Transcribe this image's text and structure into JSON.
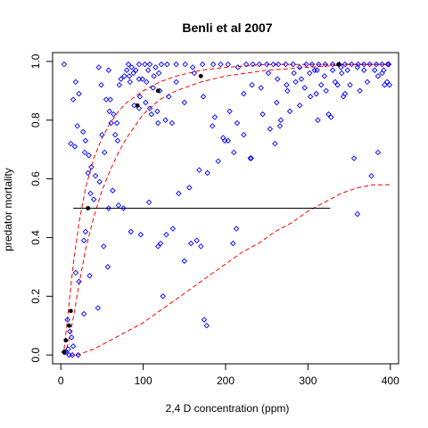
{
  "chart_data": {
    "type": "scatter",
    "title": "Benli et al 2007",
    "xlabel": "2,4 D concentration (ppm)",
    "ylabel": "predator mortality",
    "xlim": [
      -10,
      410
    ],
    "ylim": [
      -0.03,
      1.03
    ],
    "xticks": [
      0,
      100,
      200,
      300,
      400
    ],
    "yticks": [
      0.0,
      0.2,
      0.4,
      0.6,
      0.8,
      1.0
    ],
    "colors": {
      "points": "#0000ff",
      "means": "#000000",
      "curves": "#ff0000",
      "line": "#000000"
    },
    "series": [
      {
        "kind": "observations",
        "marker": "open-diamond",
        "points": [
          [
            4,
            0.99
          ],
          [
            18,
            0.93
          ],
          [
            22,
            0.89
          ],
          [
            15,
            0.87
          ],
          [
            27,
            0.76
          ],
          [
            30,
            0.73
          ],
          [
            20,
            0.78
          ],
          [
            12,
            0.72
          ],
          [
            17,
            0.71
          ],
          [
            29,
            0.69
          ],
          [
            34,
            0.68
          ],
          [
            36,
            0.55
          ],
          [
            40,
            0.53
          ],
          [
            46,
            0.98
          ],
          [
            58,
            0.97
          ],
          [
            49,
            0.92
          ],
          [
            60,
            0.87
          ],
          [
            64,
            0.82
          ],
          [
            68,
            0.79
          ],
          [
            50,
            0.75
          ],
          [
            53,
            0.69
          ],
          [
            37,
            0.64
          ],
          [
            33,
            0.62
          ],
          [
            42,
            0.61
          ],
          [
            47,
            0.59
          ],
          [
            30,
            0.42
          ],
          [
            28,
            0.39
          ],
          [
            18,
            0.28
          ],
          [
            22,
            0.25
          ],
          [
            8,
            0.12
          ],
          [
            11,
            0.08
          ],
          [
            13,
            0.06
          ],
          [
            15,
            0.03
          ],
          [
            4,
            0.01
          ],
          [
            6,
            0.01
          ],
          [
            9,
            0.02
          ],
          [
            10,
            0.0
          ],
          [
            14,
            0.0
          ],
          [
            21,
            0.0
          ],
          [
            28,
            0.14
          ],
          [
            35,
            0.27
          ],
          [
            45,
            0.16
          ],
          [
            52,
            0.37
          ],
          [
            57,
            0.3
          ],
          [
            58,
            0.5
          ],
          [
            63,
            0.56
          ],
          [
            70,
            0.51
          ],
          [
            76,
            0.5
          ],
          [
            86,
            0.98
          ],
          [
            95,
            0.99
          ],
          [
            102,
            0.99
          ],
          [
            108,
            0.99
          ],
          [
            115,
            0.98
          ],
          [
            122,
            0.99
          ],
          [
            129,
            0.99
          ],
          [
            140,
            0.99
          ],
          [
            151,
            0.99
          ],
          [
            160,
            0.98
          ],
          [
            172,
            0.99
          ],
          [
            185,
            0.99
          ],
          [
            194,
            0.99
          ],
          [
            203,
            0.99
          ],
          [
            215,
            0.98
          ],
          [
            225,
            0.99
          ],
          [
            233,
            0.99
          ],
          [
            241,
            0.99
          ],
          [
            250,
            0.99
          ],
          [
            258,
            0.99
          ],
          [
            264,
            0.99
          ],
          [
            273,
            0.99
          ],
          [
            282,
            0.99
          ],
          [
            290,
            0.98
          ],
          [
            298,
            0.99
          ],
          [
            305,
            0.99
          ],
          [
            313,
            0.99
          ],
          [
            321,
            0.99
          ],
          [
            330,
            0.99
          ],
          [
            338,
            0.99
          ],
          [
            345,
            0.99
          ],
          [
            353,
            0.99
          ],
          [
            361,
            0.99
          ],
          [
            368,
            0.99
          ],
          [
            375,
            0.99
          ],
          [
            383,
            0.99
          ],
          [
            390,
            0.99
          ],
          [
            397,
            0.99
          ],
          [
            88,
            0.96
          ],
          [
            95,
            0.94
          ],
          [
            104,
            0.93
          ],
          [
            112,
            0.91
          ],
          [
            120,
            0.9
          ],
          [
            131,
            0.88
          ],
          [
            140,
            0.93
          ],
          [
            150,
            0.86
          ],
          [
            162,
            0.96
          ],
          [
            173,
            0.88
          ],
          [
            184,
            0.78
          ],
          [
            197,
            0.74
          ],
          [
            205,
            0.83
          ],
          [
            214,
            0.79
          ],
          [
            222,
            0.89
          ],
          [
            232,
            0.92
          ],
          [
            243,
            0.91
          ],
          [
            252,
            0.96
          ],
          [
            263,
            0.94
          ],
          [
            274,
            0.92
          ],
          [
            283,
            0.96
          ],
          [
            292,
            0.94
          ],
          [
            302,
            0.96
          ],
          [
            311,
            0.97
          ],
          [
            320,
            0.95
          ],
          [
            330,
            0.97
          ],
          [
            340,
            0.98
          ],
          [
            348,
            0.97
          ],
          [
            360,
            0.98
          ],
          [
            368,
            0.97
          ],
          [
            381,
            0.97
          ],
          [
            390,
            0.96
          ],
          [
            398,
            0.99
          ],
          [
            96,
            0.88
          ],
          [
            108,
            0.84
          ],
          [
            117,
            0.83
          ],
          [
            127,
            0.8
          ],
          [
            135,
            0.79
          ],
          [
            143,
            0.55
          ],
          [
            156,
            0.57
          ],
          [
            168,
            0.63
          ],
          [
            178,
            0.62
          ],
          [
            191,
            0.66
          ],
          [
            203,
            0.73
          ],
          [
            210,
            0.69
          ],
          [
            230,
            0.67
          ],
          [
            245,
            0.82
          ],
          [
            262,
            0.86
          ],
          [
            267,
            0.8
          ],
          [
            285,
            0.93
          ],
          [
            296,
            0.91
          ],
          [
            308,
            0.97
          ],
          [
            316,
            0.92
          ],
          [
            322,
            0.9
          ],
          [
            333,
            0.93
          ],
          [
            345,
            0.89
          ],
          [
            351,
            0.92
          ],
          [
            363,
            0.9
          ],
          [
            372,
            0.93
          ],
          [
            385,
            0.95
          ],
          [
            393,
            0.92
          ],
          [
            85,
            0.42
          ],
          [
            97,
            0.41
          ],
          [
            107,
            0.52
          ],
          [
            121,
            0.38
          ],
          [
            128,
            0.41
          ],
          [
            136,
            0.43
          ],
          [
            150,
            0.32
          ],
          [
            158,
            0.38
          ],
          [
            165,
            0.39
          ],
          [
            170,
            0.37
          ],
          [
            174,
            0.12
          ],
          [
            177,
            0.1
          ],
          [
            187,
            0.81
          ],
          [
            199,
            0.73
          ],
          [
            213,
            0.43
          ],
          [
            231,
            0.67
          ],
          [
            260,
            0.72
          ],
          [
            266,
            0.78
          ],
          [
            278,
            0.83
          ],
          [
            290,
            0.85
          ],
          [
            303,
            0.88
          ],
          [
            325,
            0.82
          ],
          [
            328,
            0.81
          ],
          [
            336,
            0.92
          ],
          [
            343,
            0.88
          ],
          [
            356,
            0.67
          ],
          [
            360,
            0.48
          ],
          [
            377,
            0.61
          ],
          [
            385,
            0.69
          ],
          [
            392,
            0.97
          ],
          [
            396,
            0.93
          ],
          [
            399,
            0.92
          ],
          [
            209,
            0.38
          ],
          [
            222,
            0.75
          ],
          [
            254,
            0.77
          ],
          [
            275,
            0.9
          ],
          [
            312,
            0.8
          ],
          [
            341,
            0.96
          ],
          [
            310,
            0.89
          ],
          [
            110,
            0.82
          ],
          [
            118,
            0.79
          ],
          [
            124,
            0.2
          ],
          [
            118,
            0.37
          ],
          [
            95,
            0.84
          ],
          [
            103,
            0.86
          ],
          [
            71,
            0.92
          ],
          [
            77,
            0.95
          ],
          [
            83,
            0.95
          ],
          [
            89,
            0.85
          ],
          [
            55,
            0.87
          ],
          [
            59,
            0.83
          ],
          [
            61,
            0.79
          ],
          [
            66,
            0.75
          ],
          [
            69,
            0.73
          ],
          [
            73,
            0.94
          ],
          [
            80,
            0.97
          ],
          [
            82,
            0.99
          ],
          [
            84,
            0.93
          ],
          [
            91,
            0.97
          ],
          [
            99,
            0.94
          ],
          [
            106,
            0.97
          ],
          [
            113,
            0.95
          ],
          [
            119,
            0.96
          ]
        ]
      },
      {
        "kind": "group-means",
        "marker": "filled-circle",
        "points": [
          [
            4,
            0.01
          ],
          [
            6,
            0.05
          ],
          [
            10,
            0.1
          ],
          [
            12,
            0.15
          ],
          [
            33,
            0.5
          ],
          [
            93,
            0.85
          ],
          [
            118,
            0.9
          ],
          [
            170,
            0.95
          ],
          [
            337,
            0.99
          ]
        ]
      },
      {
        "kind": "fitted-curve",
        "style": "dashed",
        "points": [
          [
            4,
            0.02
          ],
          [
            8,
            0.12
          ],
          [
            12,
            0.23
          ],
          [
            16,
            0.33
          ],
          [
            22,
            0.45
          ],
          [
            30,
            0.57
          ],
          [
            40,
            0.67
          ],
          [
            50,
            0.74
          ],
          [
            60,
            0.79
          ],
          [
            70,
            0.83
          ],
          [
            80,
            0.86
          ],
          [
            90,
            0.88
          ],
          [
            100,
            0.9
          ],
          [
            120,
            0.93
          ],
          [
            140,
            0.95
          ],
          [
            170,
            0.97
          ],
          [
            200,
            0.98
          ],
          [
            250,
            0.99
          ],
          [
            300,
            0.99
          ],
          [
            350,
            0.99
          ],
          [
            400,
            0.99
          ]
        ]
      },
      {
        "kind": "fitted-curve",
        "style": "dashed",
        "points": [
          [
            4,
            0.0
          ],
          [
            8,
            0.03
          ],
          [
            12,
            0.08
          ],
          [
            16,
            0.14
          ],
          [
            22,
            0.24
          ],
          [
            30,
            0.36
          ],
          [
            40,
            0.47
          ],
          [
            50,
            0.56
          ],
          [
            60,
            0.63
          ],
          [
            70,
            0.69
          ],
          [
            80,
            0.74
          ],
          [
            90,
            0.78
          ],
          [
            100,
            0.82
          ],
          [
            120,
            0.87
          ],
          [
            140,
            0.9
          ],
          [
            170,
            0.93
          ],
          [
            200,
            0.95
          ],
          [
            250,
            0.97
          ],
          [
            300,
            0.98
          ],
          [
            350,
            0.99
          ],
          [
            400,
            0.99
          ]
        ]
      },
      {
        "kind": "fitted-curve",
        "style": "dashed",
        "points": [
          [
            10,
            0.0
          ],
          [
            20,
            0.0
          ],
          [
            30,
            0.01
          ],
          [
            40,
            0.02
          ],
          [
            60,
            0.05
          ],
          [
            80,
            0.08
          ],
          [
            100,
            0.11
          ],
          [
            120,
            0.15
          ],
          [
            140,
            0.19
          ],
          [
            160,
            0.23
          ],
          [
            180,
            0.27
          ],
          [
            200,
            0.31
          ],
          [
            220,
            0.35
          ],
          [
            240,
            0.38
          ],
          [
            260,
            0.42
          ],
          [
            280,
            0.45
          ],
          [
            300,
            0.49
          ],
          [
            320,
            0.52
          ],
          [
            340,
            0.55
          ],
          [
            360,
            0.57
          ],
          [
            380,
            0.58
          ],
          [
            400,
            0.58
          ]
        ]
      },
      {
        "kind": "reference-line",
        "style": "solid",
        "points": [
          [
            15,
            0.5
          ],
          [
            327,
            0.5
          ]
        ]
      }
    ]
  }
}
